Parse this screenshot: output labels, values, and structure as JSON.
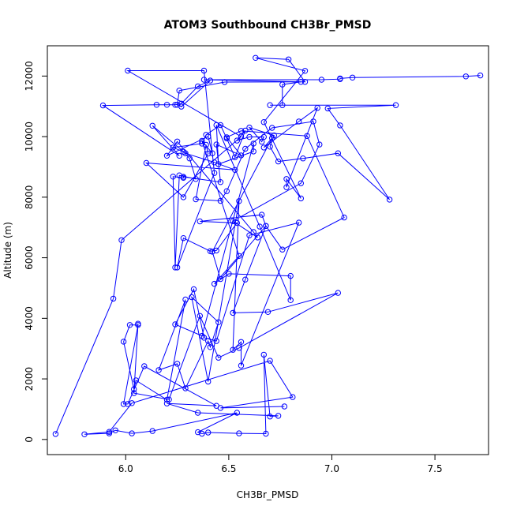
{
  "chart_data": {
    "type": "line",
    "title": "ATOM3 Southbound CH3Br_PMSD",
    "xlabel": "CH3Br_PMSD",
    "ylabel": "Altitude (m)",
    "xlim": [
      5.62,
      7.76
    ],
    "ylim": [
      -500,
      13000
    ],
    "xticks": [
      6.0,
      6.5,
      7.0,
      7.5
    ],
    "yticks": [
      0,
      2000,
      4000,
      6000,
      8000,
      10000,
      12000
    ],
    "grid": false,
    "color": "#0000ff",
    "marker": "open-circle",
    "series": [
      {
        "points": [
          [
            5.66,
            180
          ],
          [
            5.94,
            4650
          ],
          [
            5.98,
            6580
          ],
          [
            6.56,
            10000
          ],
          [
            6.01,
            12180
          ],
          [
            6.38,
            12180
          ],
          [
            6.43,
            8800
          ],
          [
            6.25,
            5680
          ],
          [
            6.28,
            6650
          ],
          [
            6.41,
            6220
          ],
          [
            6.44,
            6240
          ],
          [
            6.54,
            7150
          ],
          [
            6.36,
            7200
          ],
          [
            6.66,
            7420
          ],
          [
            6.68,
            7050
          ],
          [
            6.46,
            5300
          ],
          [
            6.42,
            6200
          ],
          [
            6.71,
            9950
          ],
          [
            6.67,
            9640
          ],
          [
            6.84,
            10500
          ],
          [
            6.93,
            10950
          ],
          [
            6.78,
            8330
          ],
          [
            6.78,
            8600
          ],
          [
            6.85,
            7960
          ],
          [
            6.67,
            10480
          ],
          [
            6.87,
            12170
          ],
          [
            6.63,
            12600
          ],
          [
            6.79,
            12550
          ],
          [
            6.87,
            11810
          ],
          [
            6.48,
            11800
          ],
          [
            6.26,
            11520
          ],
          [
            6.25,
            11050
          ],
          [
            6.27,
            10990
          ],
          [
            6.41,
            11850
          ],
          [
            6.35,
            11660
          ],
          [
            6.27,
            11090
          ],
          [
            6.24,
            11050
          ],
          [
            6.2,
            11050
          ],
          [
            6.15,
            11050
          ],
          [
            5.89,
            11030
          ],
          [
            6.26,
            9370
          ],
          [
            6.13,
            10360
          ],
          [
            6.29,
            9450
          ],
          [
            6.43,
            9150
          ],
          [
            6.53,
            8900
          ],
          [
            6.1,
            9130
          ],
          [
            6.28,
            8000
          ],
          [
            6.4,
            9440
          ],
          [
            6.39,
            9730
          ],
          [
            6.34,
            7930
          ],
          [
            6.46,
            7880
          ],
          [
            6.49,
            8200
          ],
          [
            6.58,
            9600
          ],
          [
            6.71,
            10290
          ],
          [
            6.91,
            10500
          ],
          [
            6.94,
            9740
          ],
          [
            6.85,
            8460
          ],
          [
            6.52,
            7210
          ],
          [
            6.64,
            6670
          ],
          [
            6.62,
            6850
          ],
          [
            6.25,
            9840
          ],
          [
            6.2,
            9370
          ],
          [
            6.4,
            10000
          ],
          [
            6.42,
            9450
          ],
          [
            6.37,
            9860
          ],
          [
            6.55,
            6060
          ],
          [
            6.43,
            5140
          ],
          [
            6.5,
            5470
          ],
          [
            6.8,
            5400
          ],
          [
            6.8,
            4600
          ],
          [
            6.65,
            7030
          ],
          [
            6.44,
            10380
          ],
          [
            6.45,
            9090
          ],
          [
            6.62,
            9510
          ],
          [
            6.62,
            9770
          ],
          [
            6.37,
            3420
          ],
          [
            6.24,
            3800
          ],
          [
            6.33,
            4960
          ],
          [
            6.38,
            3360
          ],
          [
            6.44,
            3250
          ],
          [
            6.6,
            6740
          ],
          [
            6.84,
            7160
          ],
          [
            6.56,
            2440
          ],
          [
            6.56,
            3220
          ],
          [
            6.52,
            2960
          ],
          [
            6.55,
            7870
          ],
          [
            6.4,
            1910
          ],
          [
            6.32,
            4700
          ],
          [
            6.45,
            3870
          ],
          [
            6.41,
            3050
          ],
          [
            6.4,
            3250
          ],
          [
            6.29,
            1690
          ],
          [
            6.25,
            2500
          ],
          [
            6.16,
            2290
          ],
          [
            6.29,
            4620
          ],
          [
            6.2,
            1310
          ],
          [
            6.05,
            1950
          ],
          [
            6.04,
            1660
          ],
          [
            5.99,
            3230
          ],
          [
            6.02,
            3780
          ],
          [
            6.06,
            3780
          ],
          [
            5.99,
            1170
          ],
          [
            6.01,
            1170
          ],
          [
            6.09,
            2420
          ],
          [
            6.44,
            1110
          ],
          [
            6.2,
            1190
          ],
          [
            6.35,
            880
          ],
          [
            6.74,
            780
          ],
          [
            6.7,
            760
          ],
          [
            6.67,
            2800
          ],
          [
            6.68,
            190
          ],
          [
            6.55,
            200
          ],
          [
            6.4,
            230
          ],
          [
            6.37,
            190
          ],
          [
            6.35,
            240
          ],
          [
            6.54,
            880
          ],
          [
            6.13,
            280
          ],
          [
            6.03,
            200
          ],
          [
            5.95,
            300
          ],
          [
            5.92,
            200
          ],
          [
            5.8,
            170
          ],
          [
            5.92,
            250
          ],
          [
            6.03,
            1200
          ],
          [
            6.7,
            2600
          ],
          [
            6.81,
            1400
          ],
          [
            6.46,
            1040
          ],
          [
            6.77,
            1090
          ]
        ]
      },
      {
        "points": [
          [
            7.72,
            12020
          ],
          [
            7.65,
            11990
          ],
          [
            7.1,
            11950
          ],
          [
            7.04,
            11920
          ],
          [
            7.04,
            11900
          ],
          [
            6.95,
            11880
          ],
          [
            6.38,
            11880
          ],
          [
            6.85,
            11810
          ],
          [
            6.76,
            11720
          ],
          [
            6.76,
            11040
          ],
          [
            6.7,
            11040
          ],
          [
            7.31,
            11040
          ],
          [
            6.98,
            10930
          ],
          [
            7.04,
            10370
          ],
          [
            7.28,
            7920
          ],
          [
            7.03,
            9450
          ],
          [
            6.86,
            9280
          ],
          [
            6.74,
            9180
          ],
          [
            6.7,
            9670
          ],
          [
            6.72,
            10040
          ],
          [
            6.6,
            10300
          ],
          [
            6.66,
            9830
          ],
          [
            6.67,
            9990
          ],
          [
            6.6,
            9990
          ],
          [
            6.54,
            9870
          ],
          [
            6.58,
            10200
          ],
          [
            6.53,
            9320
          ],
          [
            6.49,
            9940
          ],
          [
            6.46,
            10380
          ],
          [
            6.39,
            10060
          ],
          [
            6.37,
            9770
          ],
          [
            6.23,
            9640
          ],
          [
            6.28,
            9500
          ],
          [
            6.31,
            9280
          ],
          [
            6.34,
            8600
          ],
          [
            6.26,
            8720
          ],
          [
            6.24,
            5680
          ],
          [
            6.23,
            8680
          ],
          [
            6.28,
            8640
          ],
          [
            6.28,
            8670
          ],
          [
            6.46,
            8500
          ],
          [
            6.44,
            9740
          ],
          [
            6.56,
            9380
          ],
          [
            6.49,
            9980
          ],
          [
            6.56,
            10190
          ],
          [
            6.88,
            10020
          ],
          [
            7.06,
            7330
          ],
          [
            6.76,
            6270
          ],
          [
            6.68,
            7050
          ],
          [
            6.58,
            5280
          ],
          [
            6.52,
            4180
          ],
          [
            6.69,
            4210
          ],
          [
            7.03,
            4840
          ],
          [
            6.55,
            3020
          ],
          [
            6.45,
            2700
          ],
          [
            6.36,
            4080
          ],
          [
            6.21,
            1320
          ],
          [
            6.04,
            1530
          ],
          [
            6.06,
            3820
          ]
        ]
      }
    ]
  }
}
